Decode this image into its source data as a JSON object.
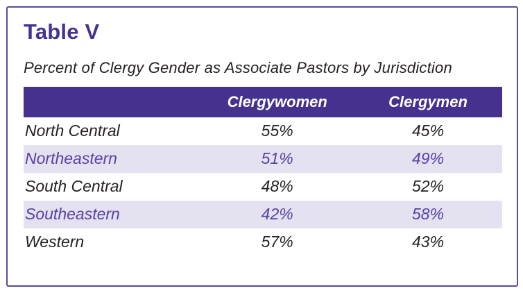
{
  "card": {
    "title": "Table V",
    "subtitle": "Percent of Clergy Gender as Associate Pastors by Jurisdiction"
  },
  "table": {
    "columns": [
      "",
      "Clergywomen",
      "Clergymen"
    ],
    "rows": [
      {
        "label": "North Central",
        "clergywomen": "55%",
        "clergymen": "45%"
      },
      {
        "label": "Northeastern",
        "clergywomen": "51%",
        "clergymen": "49%"
      },
      {
        "label": "South Central",
        "clergywomen": "48%",
        "clergymen": "52%"
      },
      {
        "label": "Southeastern",
        "clergywomen": "42%",
        "clergymen": "58%"
      },
      {
        "label": "Western",
        "clergywomen": "57%",
        "clergymen": "43%"
      }
    ]
  },
  "chart_data": {
    "type": "table",
    "title": "Percent of Clergy Gender as Associate Pastors by Jurisdiction",
    "categories": [
      "North Central",
      "Northeastern",
      "South Central",
      "Southeastern",
      "Western"
    ],
    "series": [
      {
        "name": "Clergywomen",
        "values": [
          55,
          51,
          48,
          42,
          57
        ]
      },
      {
        "name": "Clergymen",
        "values": [
          45,
          49,
          52,
          58,
          43
        ]
      }
    ],
    "units": "percent"
  },
  "colors": {
    "accent": "#453394",
    "header-bg": "#46318f",
    "row-alt-bg": "#e4e1f0",
    "row-alt-text": "#5a41a5",
    "text-dark": "#262122",
    "border": "#5b4a96"
  }
}
